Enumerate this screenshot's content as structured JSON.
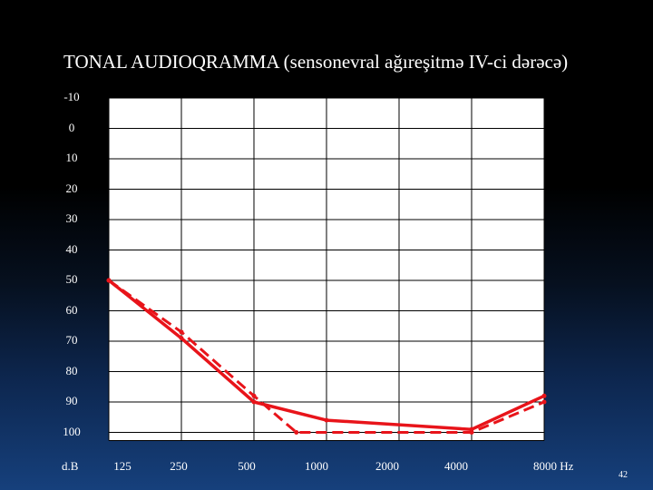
{
  "title": "TONAL  AUDIOQRAMMA (sensonevral ağıreşitmə IV-ci dərəcə)",
  "page_number": "42",
  "chart_data": {
    "type": "line",
    "title": "TONAL  AUDIOQRAMMA (sensonevral ağıreşitmə IV-ci dərəcə)",
    "ylabel": "d.B",
    "xlabel": "Hz",
    "y_ticks": [
      "-10",
      "0",
      "10",
      "20",
      "30",
      "40",
      "50",
      "60",
      "70",
      "80",
      "90",
      "100"
    ],
    "x_ticks": [
      "125",
      "250",
      "500",
      "1000",
      "2000",
      "4000",
      "8000"
    ],
    "x_last_tick_label": "8000 Hz",
    "ylim": [
      -10,
      105
    ],
    "y_inverted": true,
    "grid": true,
    "series": [
      {
        "style": "solid",
        "color": "#e8141a",
        "points": [
          {
            "x": "125",
            "y": 50
          },
          {
            "x": "250",
            "y": 69
          },
          {
            "x": "500",
            "y": 90
          },
          {
            "x": "1000",
            "y": 96
          },
          {
            "x": "4000",
            "y": 99
          },
          {
            "x": "8000",
            "y": 88
          }
        ]
      },
      {
        "style": "dashed",
        "color": "#e8141a",
        "points": [
          {
            "x": "125",
            "y": 50
          },
          {
            "x": "250",
            "y": 67
          },
          {
            "x": "500",
            "y": 88
          },
          {
            "x": "750",
            "y": 100
          },
          {
            "x": "4000",
            "y": 100
          },
          {
            "x": "8000",
            "y": 90
          }
        ]
      }
    ]
  }
}
